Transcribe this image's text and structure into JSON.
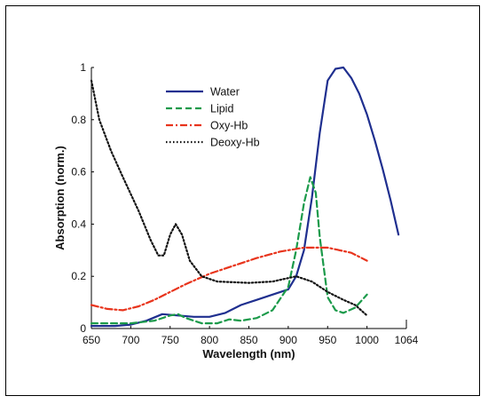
{
  "chart_data": {
    "type": "line",
    "title": "",
    "xlabel": "Wavelength (nm)",
    "ylabel": "Absorption (norm.)",
    "xlim": [
      650,
      1050
    ],
    "ylim": [
      0,
      1
    ],
    "x_ticks": [
      650,
      700,
      750,
      800,
      850,
      900,
      950,
      1000
    ],
    "x_tick_labels": [
      "650",
      "700",
      "750",
      "800",
      "850",
      "900",
      "950",
      "1000"
    ],
    "x_extra_tick": {
      "value": 1064,
      "label": "1064"
    },
    "y_ticks": [
      0,
      0.2,
      0.4,
      0.6,
      0.8,
      1
    ],
    "y_tick_labels": [
      "0",
      "0.2",
      "0.4",
      "0.6",
      "0.8",
      "1"
    ],
    "grid": false,
    "legend_position": "top-right",
    "series": [
      {
        "name": "Water",
        "color": "#1f2f8f",
        "dash": "solid",
        "points": [
          [
            650,
            0.01
          ],
          [
            680,
            0.01
          ],
          [
            700,
            0.015
          ],
          [
            720,
            0.03
          ],
          [
            740,
            0.055
          ],
          [
            760,
            0.05
          ],
          [
            780,
            0.045
          ],
          [
            800,
            0.045
          ],
          [
            820,
            0.06
          ],
          [
            840,
            0.09
          ],
          [
            860,
            0.11
          ],
          [
            880,
            0.13
          ],
          [
            900,
            0.15
          ],
          [
            910,
            0.2
          ],
          [
            920,
            0.3
          ],
          [
            930,
            0.5
          ],
          [
            940,
            0.75
          ],
          [
            950,
            0.95
          ],
          [
            960,
            0.995
          ],
          [
            970,
            1.0
          ],
          [
            980,
            0.96
          ],
          [
            990,
            0.9
          ],
          [
            1000,
            0.82
          ],
          [
            1010,
            0.72
          ],
          [
            1020,
            0.61
          ],
          [
            1030,
            0.49
          ],
          [
            1040,
            0.36
          ]
        ]
      },
      {
        "name": "Lipid",
        "color": "#1b9a4a",
        "dash": "dashed",
        "points": [
          [
            650,
            0.02
          ],
          [
            700,
            0.02
          ],
          [
            730,
            0.03
          ],
          [
            750,
            0.05
          ],
          [
            760,
            0.055
          ],
          [
            770,
            0.04
          ],
          [
            790,
            0.02
          ],
          [
            810,
            0.02
          ],
          [
            825,
            0.035
          ],
          [
            840,
            0.03
          ],
          [
            860,
            0.04
          ],
          [
            880,
            0.07
          ],
          [
            900,
            0.16
          ],
          [
            910,
            0.3
          ],
          [
            920,
            0.48
          ],
          [
            928,
            0.58
          ],
          [
            935,
            0.52
          ],
          [
            940,
            0.35
          ],
          [
            950,
            0.12
          ],
          [
            960,
            0.07
          ],
          [
            970,
            0.06
          ],
          [
            985,
            0.08
          ],
          [
            1000,
            0.13
          ]
        ]
      },
      {
        "name": "Oxy-Hb",
        "color": "#e8341c",
        "dash": "dashdot",
        "points": [
          [
            650,
            0.09
          ],
          [
            670,
            0.075
          ],
          [
            690,
            0.07
          ],
          [
            710,
            0.085
          ],
          [
            730,
            0.11
          ],
          [
            750,
            0.14
          ],
          [
            770,
            0.17
          ],
          [
            800,
            0.21
          ],
          [
            830,
            0.24
          ],
          [
            860,
            0.27
          ],
          [
            890,
            0.295
          ],
          [
            920,
            0.31
          ],
          [
            950,
            0.31
          ],
          [
            980,
            0.29
          ],
          [
            1000,
            0.26
          ]
        ]
      },
      {
        "name": "Deoxy-Hb",
        "color": "#111111",
        "dash": "dotted",
        "points": [
          [
            650,
            0.95
          ],
          [
            660,
            0.8
          ],
          [
            675,
            0.68
          ],
          [
            690,
            0.58
          ],
          [
            710,
            0.45
          ],
          [
            725,
            0.34
          ],
          [
            735,
            0.28
          ],
          [
            742,
            0.28
          ],
          [
            750,
            0.36
          ],
          [
            757,
            0.4
          ],
          [
            765,
            0.36
          ],
          [
            775,
            0.26
          ],
          [
            790,
            0.2
          ],
          [
            810,
            0.18
          ],
          [
            850,
            0.175
          ],
          [
            880,
            0.18
          ],
          [
            910,
            0.2
          ],
          [
            930,
            0.18
          ],
          [
            950,
            0.14
          ],
          [
            970,
            0.11
          ],
          [
            985,
            0.09
          ],
          [
            1000,
            0.05
          ]
        ]
      }
    ]
  }
}
